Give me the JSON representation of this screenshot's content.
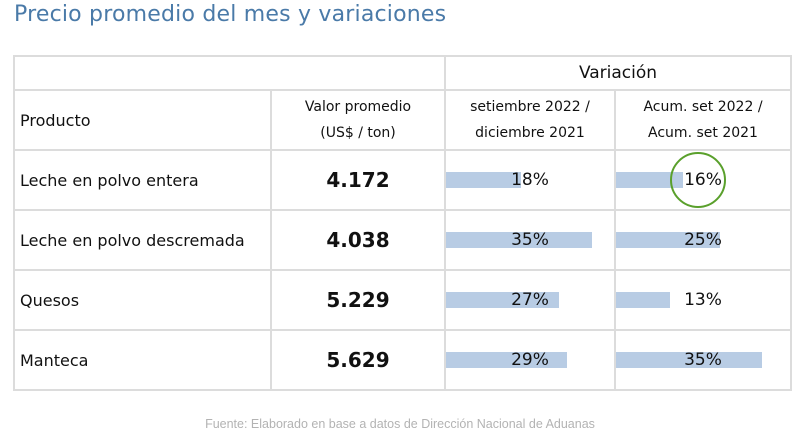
{
  "title": "Precio promedio del mes y variaciones",
  "table": {
    "group_header": "Variación",
    "columns": {
      "product": "Producto",
      "value_line1": "Valor promedio",
      "value_line2": "(US$ / ton)",
      "var1_line1": "setiembre 2022 /",
      "var1_line2": "diciembre 2021",
      "var2_line1": "Acum. set 2022 /",
      "var2_line2": "Acum. set 2021"
    },
    "rows": [
      {
        "product": "Leche en polvo entera",
        "value": "4.172",
        "var1": "18%",
        "var1_pct": 18,
        "var2": "16%",
        "var2_pct": 16,
        "var2_circled": true
      },
      {
        "product": "Leche en polvo descremada",
        "value": "4.038",
        "var1": "35%",
        "var1_pct": 35,
        "var2": "25%",
        "var2_pct": 25,
        "var2_circled": false
      },
      {
        "product": "Quesos",
        "value": "5.229",
        "var1": "27%",
        "var1_pct": 27,
        "var2": "13%",
        "var2_pct": 13,
        "var2_circled": false
      },
      {
        "product": "Manteca",
        "value": "5.629",
        "var1": "29%",
        "var1_pct": 29,
        "var2": "35%",
        "var2_pct": 35,
        "var2_circled": false
      }
    ],
    "bar_max_pct": 35
  },
  "colors": {
    "title": "#4a7aa8",
    "value": "#7bc24a",
    "bar": "#b8cce4",
    "circle": "#5aa02c",
    "source": "#b3b3b3"
  },
  "source": "Fuente: Elaborado en base a datos de Dirección Nacional de Aduanas"
}
